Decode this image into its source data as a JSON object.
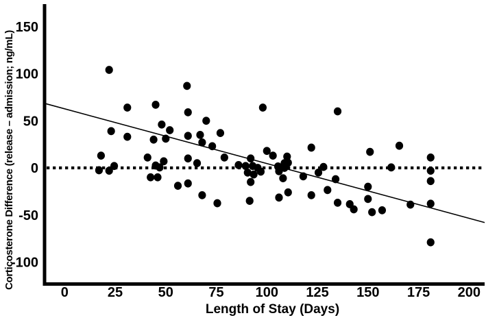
{
  "figure": {
    "background": "#ffffff",
    "ink_color": "#000000"
  },
  "chart_data": {
    "type": "scatter",
    "title": "",
    "xlabel": "Length of Stay (Days)",
    "ylabel": "Corticosterone Difference (release – admission; ng/mL)",
    "x_ticks": [
      0,
      25,
      50,
      75,
      100,
      125,
      150,
      175,
      200
    ],
    "y_ticks": [
      150,
      100,
      50,
      0,
      -50,
      -100
    ],
    "xlim": [
      -10.6,
      207.7
    ],
    "ylim": [
      -125,
      171
    ],
    "grid": false,
    "legend": "none",
    "marker": {
      "shape": "circle",
      "color": "#000000",
      "radius_px": 5.7
    },
    "zero_reference_line": {
      "y": 0,
      "style": "dotted"
    },
    "trend_line": {
      "intercept": 62.7,
      "slope": -0.581
    },
    "points": [
      [
        22,
        104
      ],
      [
        60.5,
        87
      ],
      [
        31,
        64
      ],
      [
        45,
        67
      ],
      [
        61,
        59
      ],
      [
        48,
        46
      ],
      [
        52,
        40
      ],
      [
        23,
        39
      ],
      [
        31,
        33
      ],
      [
        44,
        30
      ],
      [
        50,
        31
      ],
      [
        61,
        34
      ],
      [
        67,
        35
      ],
      [
        68,
        27
      ],
      [
        70,
        50
      ],
      [
        18,
        13
      ],
      [
        41,
        11
      ],
      [
        17,
        -2.5
      ],
      [
        22,
        -3
      ],
      [
        24.5,
        2
      ],
      [
        45,
        2.5
      ],
      [
        47,
        0.5
      ],
      [
        49,
        7
      ],
      [
        42.5,
        -10
      ],
      [
        46,
        -10
      ],
      [
        61,
        10
      ],
      [
        65.5,
        5
      ],
      [
        56,
        -19
      ],
      [
        61,
        -16.5
      ],
      [
        68,
        -29
      ],
      [
        98,
        64
      ],
      [
        77,
        37
      ],
      [
        73,
        23
      ],
      [
        79,
        11
      ],
      [
        86,
        3
      ],
      [
        89.5,
        2
      ],
      [
        92,
        10
      ],
      [
        93,
        2
      ],
      [
        95.5,
        0
      ],
      [
        97,
        -4
      ],
      [
        90.5,
        -5
      ],
      [
        93.5,
        -7
      ],
      [
        92,
        -15
      ],
      [
        100,
        18
      ],
      [
        103,
        13
      ],
      [
        105.5,
        1.5
      ],
      [
        106,
        -3.5
      ],
      [
        108.7,
        5
      ],
      [
        108.7,
        0
      ],
      [
        108,
        -11
      ],
      [
        110,
        12
      ],
      [
        110.5,
        5.5
      ],
      [
        118,
        -9
      ],
      [
        122,
        21.5
      ],
      [
        122,
        -29
      ],
      [
        125.5,
        -5
      ],
      [
        128,
        1
      ],
      [
        130,
        -23.5
      ],
      [
        134,
        -12
      ],
      [
        135,
        -37
      ],
      [
        141,
        -38.5
      ],
      [
        143,
        -44
      ],
      [
        106,
        -31.5
      ],
      [
        91.5,
        -35
      ],
      [
        75.5,
        -37.5
      ],
      [
        110.5,
        -26
      ],
      [
        135,
        60
      ],
      [
        151,
        17
      ],
      [
        165.5,
        23.5
      ],
      [
        150,
        -20
      ],
      [
        150,
        -33
      ],
      [
        152,
        -47
      ],
      [
        157,
        -45
      ],
      [
        171,
        -39
      ],
      [
        161.5,
        0.5
      ],
      [
        181,
        11
      ],
      [
        181,
        -3
      ],
      [
        181,
        -14
      ],
      [
        181,
        -38
      ],
      [
        181,
        -79
      ]
    ]
  }
}
